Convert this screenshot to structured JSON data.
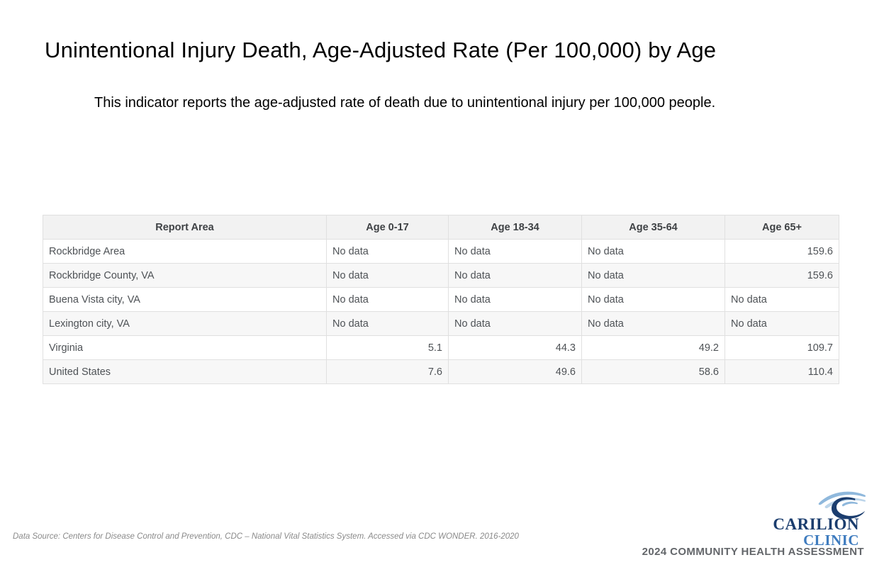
{
  "page": {
    "title": "Unintentional Injury Death, Age-Adjusted Rate (Per 100,000) by Age",
    "description": "This indicator reports the age-adjusted rate of death due to unintentional injury per 100,000 people.",
    "data_source": "Data Source: Centers for Disease Control and Prevention, CDC – National Vital Statistics System. Accessed via CDC WONDER. 2016-2020"
  },
  "table": {
    "columns": [
      "Report Area",
      "Age 0-17",
      "Age 18-34",
      "Age 35-64",
      "Age 65+"
    ],
    "no_data_label": "No data",
    "rows": [
      {
        "area": "Rockbridge Area",
        "values": [
          "No data",
          "No data",
          "No data",
          "159.6"
        ]
      },
      {
        "area": "Rockbridge County, VA",
        "values": [
          "No data",
          "No data",
          "No data",
          "159.6"
        ]
      },
      {
        "area": "Buena Vista city, VA",
        "values": [
          "No data",
          "No data",
          "No data",
          "No data"
        ]
      },
      {
        "area": "Lexington city, VA",
        "values": [
          "No data",
          "No data",
          "No data",
          "No data"
        ]
      },
      {
        "area": "Virginia",
        "values": [
          "5.1",
          "44.3",
          "49.2",
          "109.7"
        ]
      },
      {
        "area": "United States",
        "values": [
          "7.6",
          "49.6",
          "58.6",
          "110.4"
        ]
      }
    ]
  },
  "branding": {
    "org_line1": "Carilion",
    "org_line2": "Clinic",
    "banner": "2024 COMMUNITY HEALTH ASSESSMENT",
    "colors": {
      "navy": "#1b3d6e",
      "blue": "#3f7cbf",
      "light_blue": "#8fb8dc",
      "lighter_blue": "#bcd5ea",
      "banner_gray": "#63666a"
    }
  }
}
